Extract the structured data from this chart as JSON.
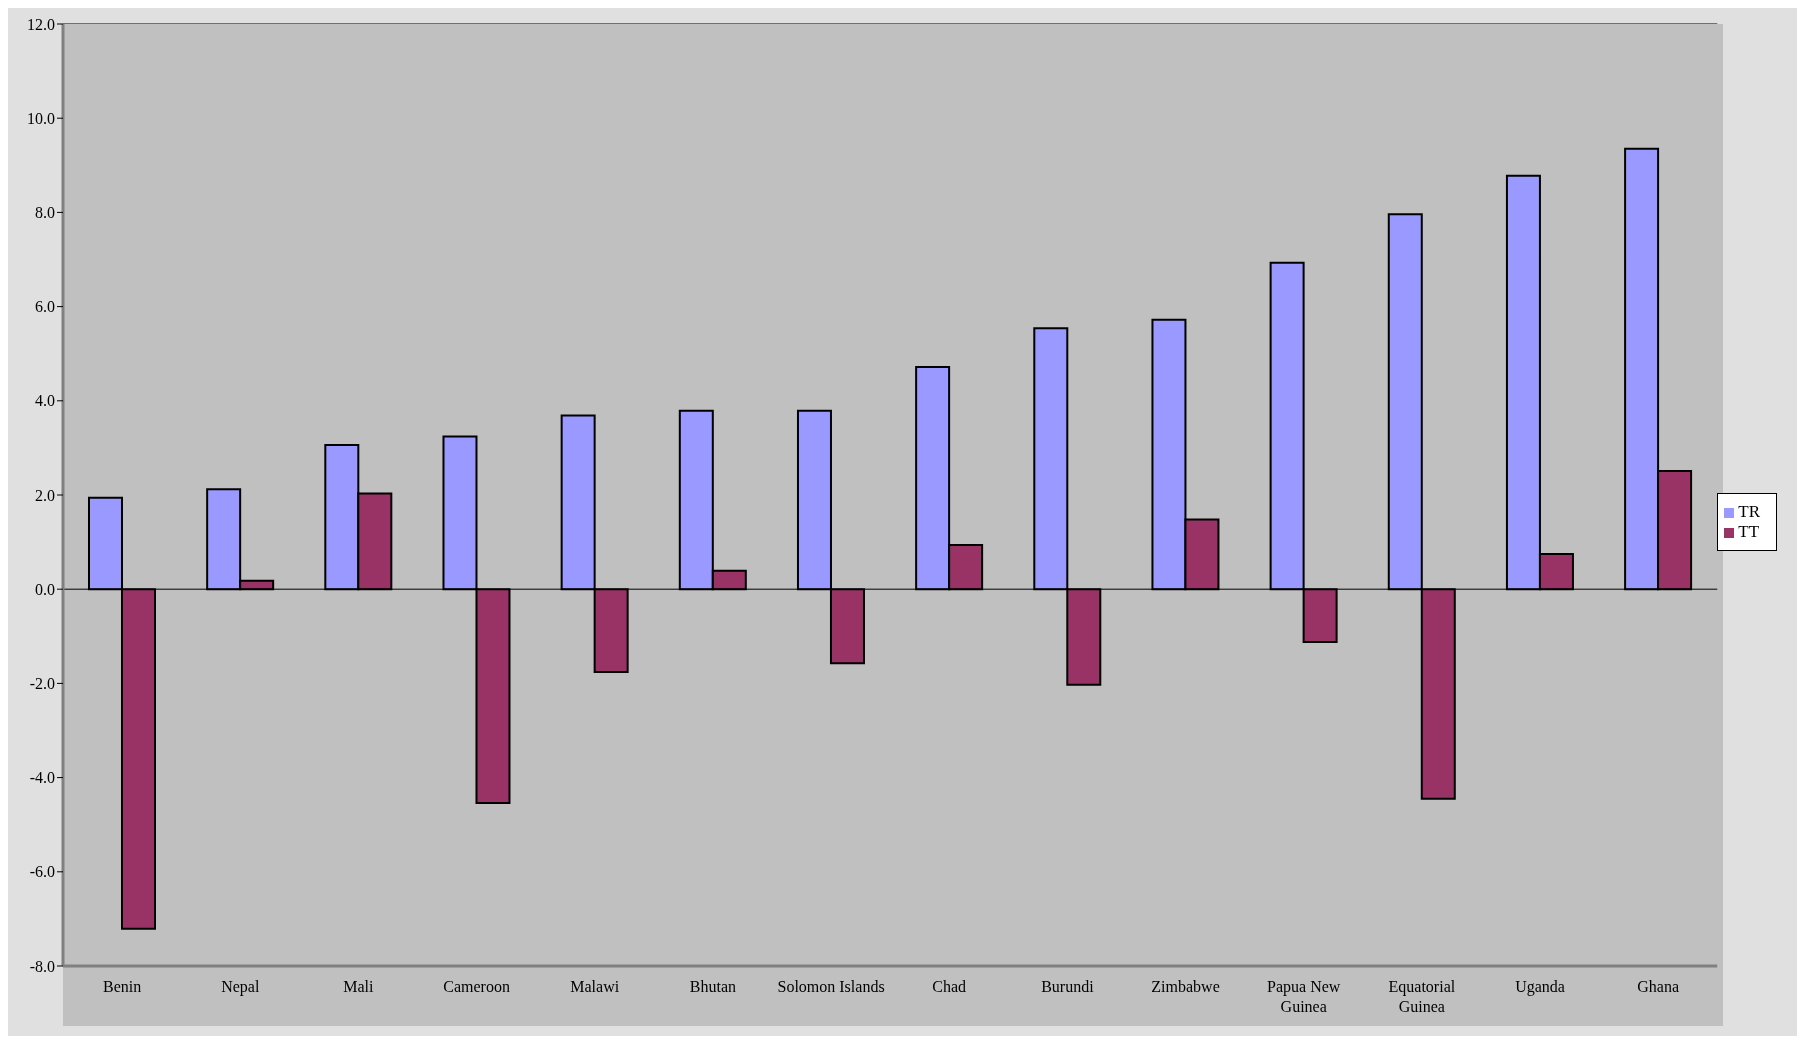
{
  "chart_data": {
    "type": "bar",
    "categories": [
      "Benin",
      "Nepal",
      "Mali",
      "Cameroon",
      "Malawi",
      "Bhutan",
      "Solomon Islands",
      "Chad",
      "Burundi",
      "Zimbabwe",
      "Papua New Guinea",
      "Equatorial Guinea",
      "Uganda",
      "Ghana"
    ],
    "series": [
      {
        "name": "TR",
        "color": "#9999ff",
        "values": [
          1.94,
          2.12,
          3.06,
          3.24,
          3.69,
          3.79,
          3.79,
          4.72,
          5.54,
          5.72,
          6.93,
          7.96,
          8.78,
          9.35
        ]
      },
      {
        "name": "TT",
        "color": "#993366",
        "values": [
          -7.21,
          0.18,
          2.03,
          -4.54,
          -1.76,
          0.39,
          -1.57,
          0.94,
          -2.03,
          1.48,
          -1.12,
          -4.45,
          0.75,
          2.51
        ]
      }
    ],
    "ylim": [
      -8,
      12
    ],
    "yticks": [
      {
        "value": -8,
        "label": "-8.0"
      },
      {
        "value": -6,
        "label": "-6.0"
      },
      {
        "value": -4,
        "label": "-4.0"
      },
      {
        "value": -2,
        "label": "-2.0"
      },
      {
        "value": 0,
        "label": "0.0"
      },
      {
        "value": 2,
        "label": "2.0"
      },
      {
        "value": 4,
        "label": "4.0"
      },
      {
        "value": 6,
        "label": "6.0"
      },
      {
        "value": 8,
        "label": "8.0"
      },
      {
        "value": 10,
        "label": "10.0"
      },
      {
        "value": 12,
        "label": "12.0"
      }
    ],
    "grid": "y",
    "legend": "right"
  }
}
